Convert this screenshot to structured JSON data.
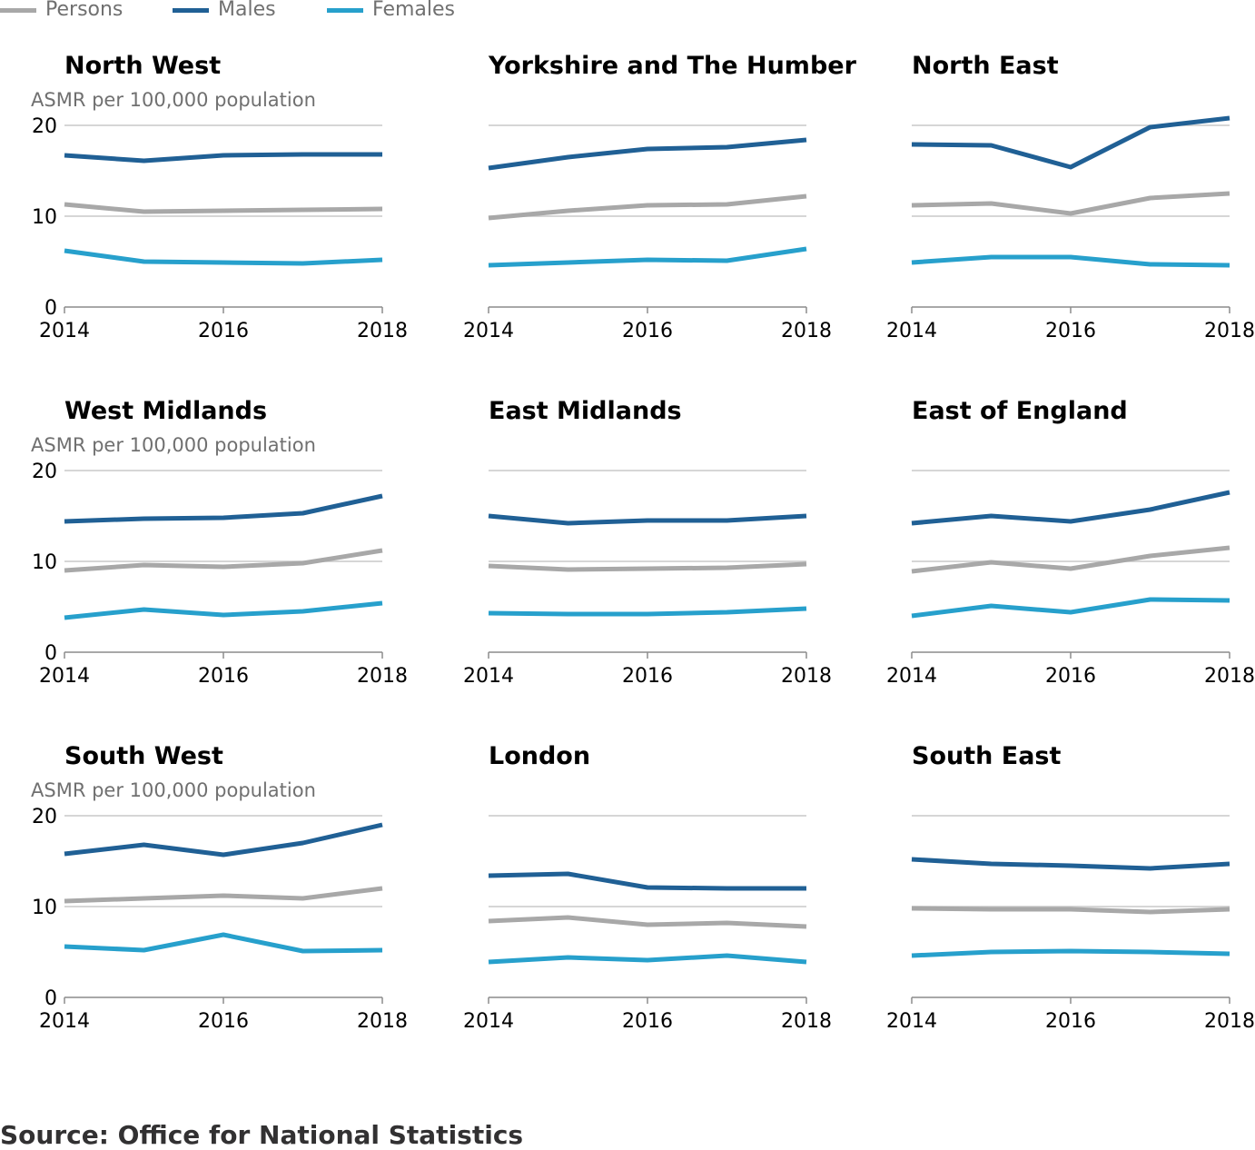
{
  "legend": {
    "items": [
      {
        "label": "Persons",
        "color": "#a8a8a8"
      },
      {
        "label": "Males",
        "color": "#206095"
      },
      {
        "label": "Females",
        "color": "#27a0cc"
      }
    ]
  },
  "y_axis_label": "ASMR per 100,000 population",
  "source": "Source: Office for National Statistics",
  "chart_data": [
    {
      "type": "line",
      "title": "North West",
      "x": [
        2014,
        2015,
        2016,
        2017,
        2018
      ],
      "ylim": [
        0,
        20
      ],
      "yticks": [
        0,
        10,
        20
      ],
      "xticks": [
        2014,
        2016,
        2018
      ],
      "series": [
        {
          "name": "Persons",
          "values": [
            11.3,
            10.5,
            10.6,
            10.7,
            10.8
          ]
        },
        {
          "name": "Males",
          "values": [
            16.7,
            16.1,
            16.7,
            16.8,
            16.8
          ]
        },
        {
          "name": "Females",
          "values": [
            6.2,
            5.0,
            4.9,
            4.8,
            5.2
          ]
        }
      ]
    },
    {
      "type": "line",
      "title": "Yorkshire and The Humber",
      "x": [
        2014,
        2015,
        2016,
        2017,
        2018
      ],
      "ylim": [
        0,
        20
      ],
      "yticks": [
        0,
        10,
        20
      ],
      "xticks": [
        2014,
        2016,
        2018
      ],
      "series": [
        {
          "name": "Persons",
          "values": [
            9.8,
            10.6,
            11.2,
            11.3,
            12.2
          ]
        },
        {
          "name": "Males",
          "values": [
            15.3,
            16.5,
            17.4,
            17.6,
            18.4
          ]
        },
        {
          "name": "Females",
          "values": [
            4.6,
            4.9,
            5.2,
            5.1,
            6.4
          ]
        }
      ]
    },
    {
      "type": "line",
      "title": "North East",
      "x": [
        2014,
        2015,
        2016,
        2017,
        2018
      ],
      "ylim": [
        0,
        20
      ],
      "yticks": [
        0,
        10,
        20
      ],
      "xticks": [
        2014,
        2016,
        2018
      ],
      "series": [
        {
          "name": "Persons",
          "values": [
            11.2,
            11.4,
            10.3,
            12.0,
            12.5
          ]
        },
        {
          "name": "Males",
          "values": [
            17.9,
            17.8,
            15.4,
            19.8,
            20.8
          ]
        },
        {
          "name": "Females",
          "values": [
            4.9,
            5.5,
            5.5,
            4.7,
            4.6
          ]
        }
      ]
    },
    {
      "type": "line",
      "title": "West Midlands",
      "x": [
        2014,
        2015,
        2016,
        2017,
        2018
      ],
      "ylim": [
        0,
        20
      ],
      "yticks": [
        0,
        10,
        20
      ],
      "xticks": [
        2014,
        2016,
        2018
      ],
      "series": [
        {
          "name": "Persons",
          "values": [
            9.0,
            9.6,
            9.4,
            9.8,
            11.2
          ]
        },
        {
          "name": "Males",
          "values": [
            14.4,
            14.7,
            14.8,
            15.3,
            17.2
          ]
        },
        {
          "name": "Females",
          "values": [
            3.8,
            4.7,
            4.1,
            4.5,
            5.4
          ]
        }
      ]
    },
    {
      "type": "line",
      "title": "East Midlands",
      "x": [
        2014,
        2015,
        2016,
        2017,
        2018
      ],
      "ylim": [
        0,
        20
      ],
      "yticks": [
        0,
        10,
        20
      ],
      "xticks": [
        2014,
        2016,
        2018
      ],
      "series": [
        {
          "name": "Persons",
          "values": [
            9.5,
            9.1,
            9.2,
            9.3,
            9.7
          ]
        },
        {
          "name": "Males",
          "values": [
            15.0,
            14.2,
            14.5,
            14.5,
            15.0
          ]
        },
        {
          "name": "Females",
          "values": [
            4.3,
            4.2,
            4.2,
            4.4,
            4.8
          ]
        }
      ]
    },
    {
      "type": "line",
      "title": "East of England",
      "x": [
        2014,
        2015,
        2016,
        2017,
        2018
      ],
      "ylim": [
        0,
        20
      ],
      "yticks": [
        0,
        10,
        20
      ],
      "xticks": [
        2014,
        2016,
        2018
      ],
      "series": [
        {
          "name": "Persons",
          "values": [
            8.9,
            9.9,
            9.2,
            10.6,
            11.5
          ]
        },
        {
          "name": "Males",
          "values": [
            14.2,
            15.0,
            14.4,
            15.7,
            17.6
          ]
        },
        {
          "name": "Females",
          "values": [
            4.0,
            5.1,
            4.4,
            5.8,
            5.7
          ]
        }
      ]
    },
    {
      "type": "line",
      "title": "South West",
      "x": [
        2014,
        2015,
        2016,
        2017,
        2018
      ],
      "ylim": [
        0,
        20
      ],
      "yticks": [
        0,
        10,
        20
      ],
      "xticks": [
        2014,
        2016,
        2018
      ],
      "series": [
        {
          "name": "Persons",
          "values": [
            10.6,
            10.9,
            11.2,
            10.9,
            12.0
          ]
        },
        {
          "name": "Males",
          "values": [
            15.8,
            16.8,
            15.7,
            17.0,
            19.0
          ]
        },
        {
          "name": "Females",
          "values": [
            5.6,
            5.2,
            6.9,
            5.1,
            5.2
          ]
        }
      ]
    },
    {
      "type": "line",
      "title": "London",
      "x": [
        2014,
        2015,
        2016,
        2017,
        2018
      ],
      "ylim": [
        0,
        20
      ],
      "yticks": [
        0,
        10,
        20
      ],
      "xticks": [
        2014,
        2016,
        2018
      ],
      "series": [
        {
          "name": "Persons",
          "values": [
            8.4,
            8.8,
            8.0,
            8.2,
            7.8
          ]
        },
        {
          "name": "Males",
          "values": [
            13.4,
            13.6,
            12.1,
            12.0,
            12.0
          ]
        },
        {
          "name": "Females",
          "values": [
            3.9,
            4.4,
            4.1,
            4.6,
            3.9
          ]
        }
      ]
    },
    {
      "type": "line",
      "title": "South East",
      "x": [
        2014,
        2015,
        2016,
        2017,
        2018
      ],
      "ylim": [
        0,
        20
      ],
      "yticks": [
        0,
        10,
        20
      ],
      "xticks": [
        2014,
        2016,
        2018
      ],
      "series": [
        {
          "name": "Persons",
          "values": [
            9.8,
            9.7,
            9.7,
            9.4,
            9.7
          ]
        },
        {
          "name": "Males",
          "values": [
            15.2,
            14.7,
            14.5,
            14.2,
            14.7
          ]
        },
        {
          "name": "Females",
          "values": [
            4.6,
            5.0,
            5.1,
            5.0,
            4.8
          ]
        }
      ]
    }
  ]
}
